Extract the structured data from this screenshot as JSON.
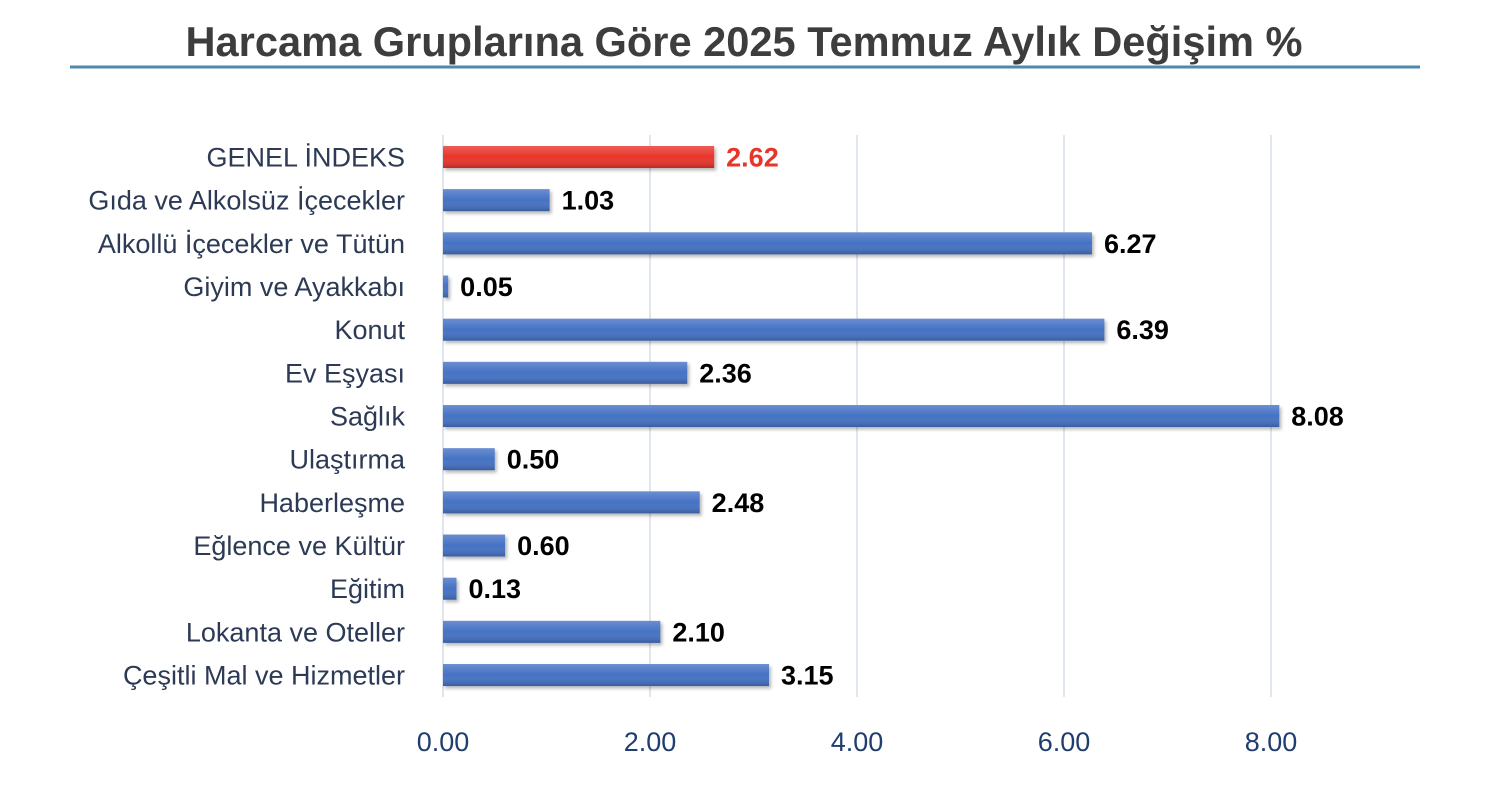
{
  "chart_data": {
    "type": "bar",
    "orientation": "horizontal",
    "title": "Harcama Gruplarına Göre 2025 Temmuz Aylık Değişim %",
    "categories": [
      "GENEL İNDEKS",
      "Gıda ve Alkolsüz İçecekler",
      "Alkollü İçecekler ve Tütün",
      "Giyim ve Ayakkabı",
      "Konut",
      "Ev Eşyası",
      "Sağlık",
      "Ulaştırma",
      "Haberleşme",
      "Eğlence ve Kültür",
      "Eğitim",
      "Lokanta ve Oteller",
      "Çeşitli Mal ve Hizmetler"
    ],
    "values": [
      2.62,
      1.03,
      6.27,
      0.05,
      6.39,
      2.36,
      8.08,
      0.5,
      2.48,
      0.6,
      0.13,
      2.1,
      3.15
    ],
    "value_labels": [
      "2.62",
      "1.03",
      "6.27",
      "0.05",
      "6.39",
      "2.36",
      "8.08",
      "0.50",
      "2.48",
      "0.60",
      "0.13",
      "2.10",
      "3.15"
    ],
    "bar_colors": [
      "#e8352a",
      "#4472c4",
      "#4472c4",
      "#4472c4",
      "#4472c4",
      "#4472c4",
      "#4472c4",
      "#4472c4",
      "#4472c4",
      "#4472c4",
      "#4472c4",
      "#4472c4",
      "#4472c4"
    ],
    "value_label_colors": [
      "#e8352a",
      "#000000",
      "#000000",
      "#000000",
      "#000000",
      "#000000",
      "#000000",
      "#000000",
      "#000000",
      "#000000",
      "#000000",
      "#000000",
      "#000000"
    ],
    "xlim": [
      0,
      9
    ],
    "xticks": [
      0,
      2,
      4,
      6,
      8
    ],
    "xtick_labels": [
      "0.00",
      "2.00",
      "4.00",
      "6.00",
      "8.00"
    ],
    "grid": true
  }
}
